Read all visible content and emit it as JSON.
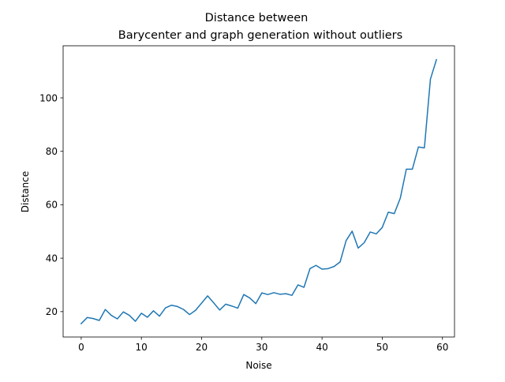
{
  "chart_data": {
    "type": "line",
    "title": [
      "Distance between",
      "Barycenter and graph generation without outliers"
    ],
    "xlabel": "Noise",
    "ylabel": "Distance",
    "xlim": [
      -3,
      62
    ],
    "ylim": [
      10.5,
      119.5
    ],
    "x_ticks": [
      0,
      10,
      20,
      30,
      40,
      50,
      60
    ],
    "y_ticks": [
      20,
      40,
      60,
      80,
      100
    ],
    "grid": false,
    "legend": "none",
    "colors": {
      "line": "#1f77b4"
    },
    "series": [
      {
        "x": [
          0,
          1,
          2,
          3,
          4,
          5,
          6,
          7,
          8,
          9,
          10,
          11,
          12,
          13,
          14,
          15,
          16,
          17,
          18,
          19,
          20,
          21,
          22,
          23,
          24,
          25,
          26,
          27,
          28,
          29,
          30,
          31,
          32,
          33,
          34,
          35,
          36,
          37,
          38,
          39,
          40,
          41,
          42,
          43,
          44,
          45,
          46,
          47,
          48,
          49,
          50,
          51,
          52,
          53,
          54,
          55,
          56,
          57,
          58,
          59
        ],
        "values": [
          15.5,
          17.8,
          17.4,
          16.7,
          20.8,
          18.6,
          17.3,
          19.9,
          18.6,
          16.4,
          19.4,
          17.9,
          20.3,
          18.3,
          21.4,
          22.4,
          21.9,
          20.8,
          18.9,
          20.5,
          23.2,
          25.9,
          23.3,
          20.6,
          22.8,
          22.1,
          21.3,
          26.4,
          25.1,
          23.0,
          27.0,
          26.4,
          27.1,
          26.5,
          26.7,
          26.1,
          30.0,
          29.1,
          36.1,
          37.3,
          35.9,
          36.1,
          36.9,
          38.6,
          46.6,
          50.1,
          43.8,
          45.8,
          49.8,
          49.1,
          51.5,
          57.2,
          56.7,
          62.5,
          73.3,
          73.3,
          81.6,
          81.3,
          107.0,
          114.3
        ]
      }
    ]
  }
}
